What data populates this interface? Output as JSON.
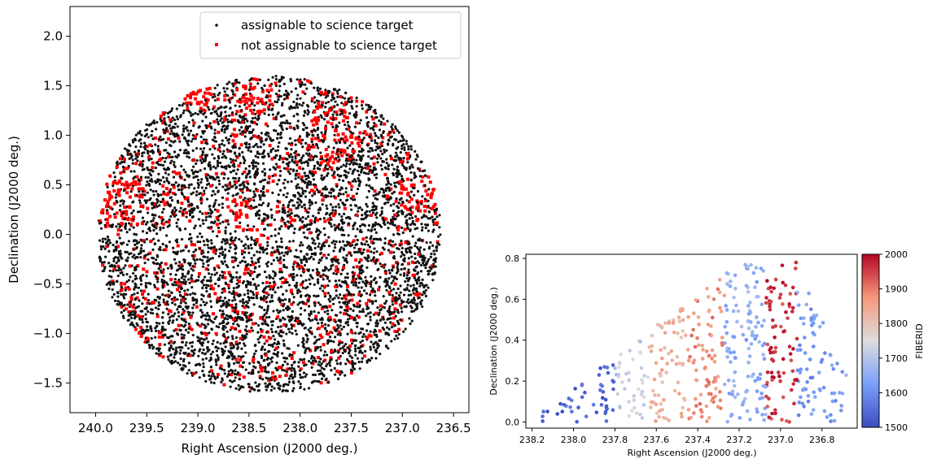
{
  "chart_data": [
    {
      "type": "scatter",
      "title": "",
      "xlabel": "Right Ascension (J2000 deg.)",
      "ylabel": "Declination (J2000 deg.)",
      "xlim": [
        240.25,
        236.35
      ],
      "ylim": [
        -1.8,
        2.3
      ],
      "x_reversed": true,
      "xticks": [
        240.0,
        239.5,
        239.0,
        238.5,
        238.0,
        237.5,
        237.0,
        236.5
      ],
      "xtick_labels": [
        "240.0",
        "239.5",
        "239.0",
        "238.5",
        "238.0",
        "237.5",
        "237.0",
        "236.5"
      ],
      "yticks": [
        2.0,
        1.5,
        1.0,
        0.5,
        0.0,
        -0.5,
        -1.0,
        -1.5
      ],
      "ytick_labels": [
        "2.0",
        "1.5",
        "1.0",
        "0.5",
        "0.0",
        "−0.5",
        "−1.0",
        "−1.5"
      ],
      "legend_position": "top-right",
      "field_center": {
        "ra": 238.3,
        "dec": 0.0
      },
      "field_radius_deg": 1.6,
      "approx_point_count": 6000,
      "series": [
        {
          "name": "assignable to science target",
          "color": "#111111",
          "marker": "dot",
          "fraction": 0.82
        },
        {
          "name": "not assignable to science target",
          "color": "#ff0000",
          "marker": "square",
          "fraction": 0.18
        }
      ]
    },
    {
      "type": "scatter",
      "title": "",
      "xlabel": "Right Ascension (J2000 deg.)",
      "ylabel": "Declination (J2000 deg.)",
      "xlim": [
        238.23,
        236.63
      ],
      "ylim": [
        -0.03,
        0.82
      ],
      "x_reversed": true,
      "xticks": [
        238.2,
        238.0,
        237.8,
        237.6,
        237.4,
        237.2,
        237.0,
        236.8
      ],
      "xtick_labels": [
        "238.2",
        "238.0",
        "237.8",
        "237.6",
        "237.4",
        "237.2",
        "237.0",
        "236.8"
      ],
      "yticks": [
        0.0,
        0.2,
        0.4,
        0.6,
        0.8
      ],
      "ytick_labels": [
        "0.0",
        "0.2",
        "0.4",
        "0.6",
        "0.8"
      ],
      "colorbar": {
        "label": "FIBERID",
        "range": [
          1500,
          2000
        ],
        "ticks": [
          1500,
          1600,
          1700,
          1800,
          1900,
          2000
        ],
        "tick_labels": [
          "1500",
          "1600",
          "1700",
          "1800",
          "1900",
          "2000"
        ],
        "colormap": "coolwarm"
      },
      "fiber_bands": [
        {
          "ra_range": [
            238.15,
            237.8
          ],
          "fiberid": 1540
        },
        {
          "ra_range": [
            237.8,
            237.64
          ],
          "fiberid": 1720
        },
        {
          "ra_range": [
            237.64,
            237.45
          ],
          "fiberid": 1830
        },
        {
          "ra_range": [
            237.45,
            237.27
          ],
          "fiberid": 1880
        },
        {
          "ra_range": [
            237.27,
            237.07
          ],
          "fiberid": 1650
        },
        {
          "ra_range": [
            237.07,
            236.92
          ],
          "fiberid": 1960
        },
        {
          "ra_range": [
            236.92,
            236.7
          ],
          "fiberid": 1620
        }
      ]
    }
  ]
}
